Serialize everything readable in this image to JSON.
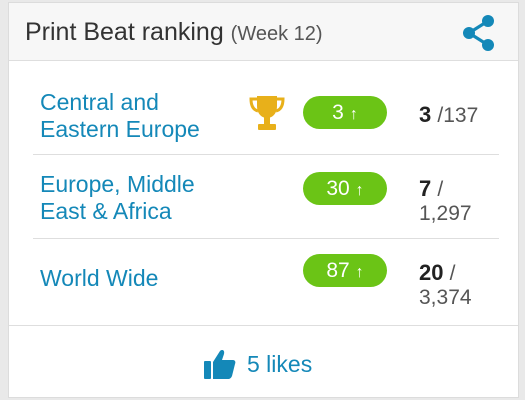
{
  "header": {
    "title": "Print Beat ranking",
    "subtitle": "(Week 12)",
    "share_icon": "share-icon"
  },
  "colors": {
    "accent_blue": "#1488b8",
    "badge_green": "#6bc416",
    "trophy_gold": "#e8b01a"
  },
  "rankings": [
    {
      "region_line1": "Central and",
      "region_line2": "Eastern Europe",
      "badge": "3",
      "position": "3",
      "total": "/137",
      "trophy_icon": "trophy-icon"
    },
    {
      "region_line1": "Europe, Middle",
      "region_line2": "East & Africa",
      "badge": "30",
      "position": "7",
      "total_line1": "/",
      "total_line2": "1,297"
    },
    {
      "region_line1": "World Wide",
      "badge": "87",
      "position": "20",
      "total_line1": "/",
      "total_line2": "3,374"
    }
  ],
  "badge_arrow": "↑",
  "footer": {
    "likes_label": "5 likes",
    "like_icon": "thumbs-up-icon"
  }
}
